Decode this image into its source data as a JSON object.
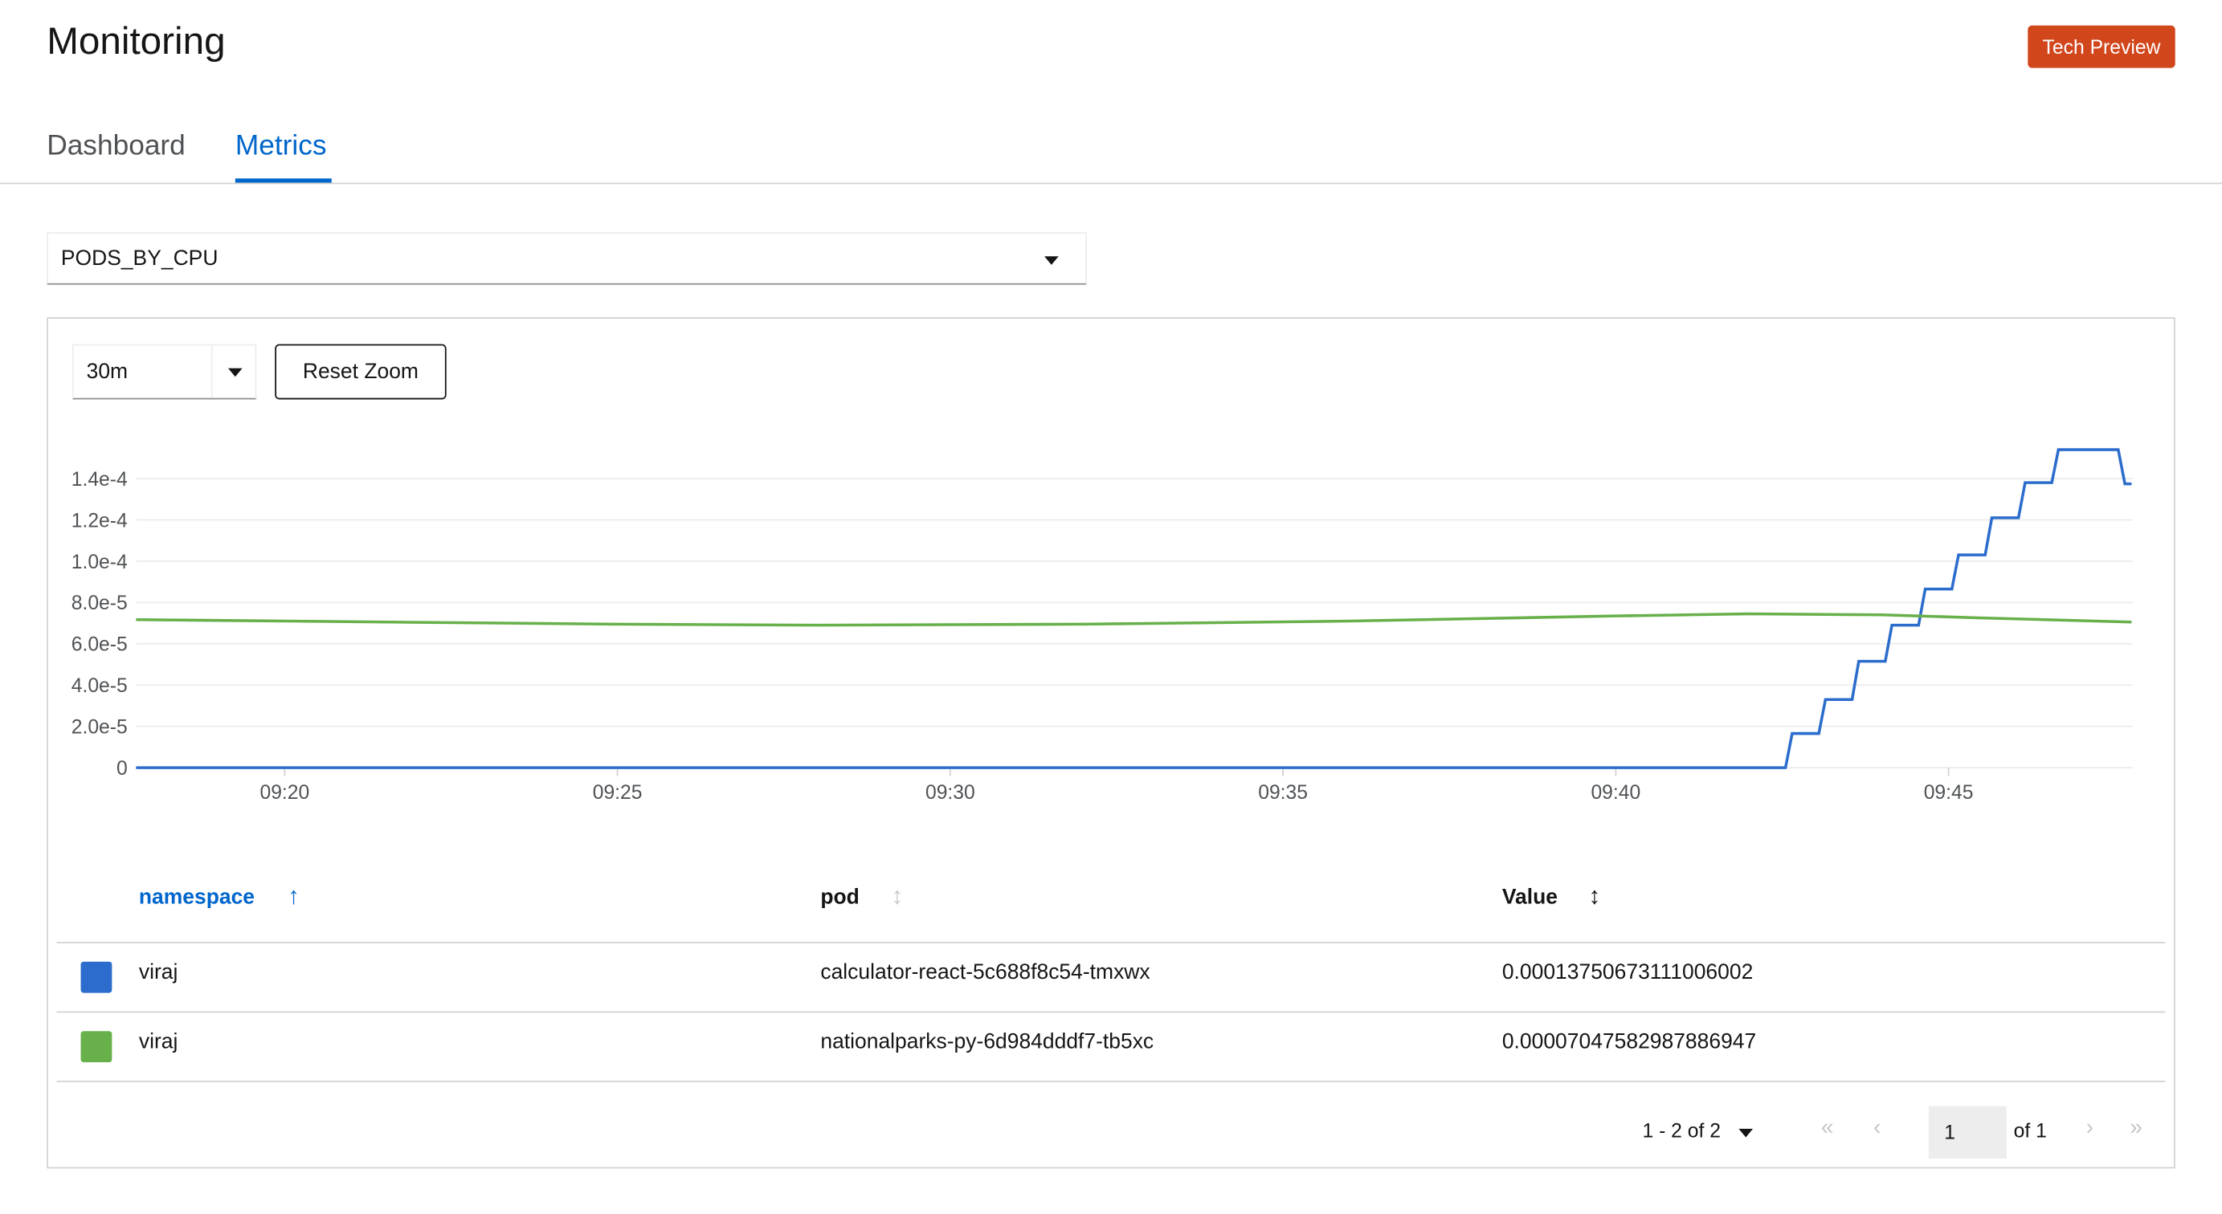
{
  "header": {
    "title": "Monitoring",
    "badge": "Tech Preview"
  },
  "tabs": [
    {
      "label": "Dashboard",
      "active": false
    },
    {
      "label": "Metrics",
      "active": true
    }
  ],
  "query_select": {
    "value": "PODS_BY_CPU"
  },
  "toolbar": {
    "time_range": "30m",
    "reset_zoom_label": "Reset Zoom"
  },
  "colors": {
    "accent": "#0066cc",
    "badge": "#d2461c",
    "series1": "#2b6ccc",
    "series2": "#67b04a"
  },
  "chart_data": {
    "type": "line",
    "xlim": [
      "09:17:46",
      "09:47:46"
    ],
    "ylim": [
      0,
      0.000154
    ],
    "x_ticks": [
      "09:20",
      "09:25",
      "09:30",
      "09:35",
      "09:40",
      "09:45"
    ],
    "y_ticks": [
      {
        "value": 0,
        "label": "0"
      },
      {
        "value": 2e-05,
        "label": "2.0e-5"
      },
      {
        "value": 4e-05,
        "label": "4.0e-5"
      },
      {
        "value": 6e-05,
        "label": "6.0e-5"
      },
      {
        "value": 8e-05,
        "label": "8.0e-5"
      },
      {
        "value": 0.0001,
        "label": "1.0e-4"
      },
      {
        "value": 0.00012,
        "label": "1.2e-4"
      },
      {
        "value": 0.00014,
        "label": "1.4e-4"
      }
    ],
    "grid": true,
    "series": [
      {
        "color": "#2b6ccc",
        "points": [
          [
            "09:17:46",
            0
          ],
          [
            "09:42:33",
            0
          ],
          [
            "09:42:39",
            1.65e-05
          ],
          [
            "09:43:03",
            1.65e-05
          ],
          [
            "09:43:09",
            3.3e-05
          ],
          [
            "09:43:33",
            3.3e-05
          ],
          [
            "09:43:39",
            5.15e-05
          ],
          [
            "09:44:03",
            5.15e-05
          ],
          [
            "09:44:09",
            6.9e-05
          ],
          [
            "09:44:33",
            6.9e-05
          ],
          [
            "09:44:39",
            8.65e-05
          ],
          [
            "09:45:03",
            8.65e-05
          ],
          [
            "09:45:09",
            0.000103
          ],
          [
            "09:45:33",
            0.000103
          ],
          [
            "09:45:39",
            0.000121
          ],
          [
            "09:46:03",
            0.000121
          ],
          [
            "09:46:09",
            0.000138
          ],
          [
            "09:46:33",
            0.000138
          ],
          [
            "09:46:39",
            0.000154
          ],
          [
            "09:47:33",
            0.000154
          ],
          [
            "09:47:39",
            0.0001375
          ],
          [
            "09:47:45",
            0.0001375
          ]
        ]
      },
      {
        "color": "#67b04a",
        "points": [
          [
            "09:17:46",
            7.17e-05
          ],
          [
            "09:20:00",
            7.1e-05
          ],
          [
            "09:25:00",
            6.95e-05
          ],
          [
            "09:28:00",
            6.9e-05
          ],
          [
            "09:32:00",
            6.95e-05
          ],
          [
            "09:36:00",
            7.1e-05
          ],
          [
            "09:40:00",
            7.35e-05
          ],
          [
            "09:42:00",
            7.45e-05
          ],
          [
            "09:44:00",
            7.4e-05
          ],
          [
            "09:45:30",
            7.25e-05
          ],
          [
            "09:47:45",
            7.05e-05
          ]
        ]
      }
    ]
  },
  "table": {
    "columns": [
      {
        "label": "namespace",
        "sorted": "asc"
      },
      {
        "label": "pod",
        "sorted": "none"
      },
      {
        "label": "Value",
        "sorted": "none"
      }
    ],
    "rows": [
      {
        "color": "#2b6ccc",
        "namespace": "viraj",
        "pod": "calculator-react-5c688f8c54-tmxwx",
        "value": "0.00013750673111006002"
      },
      {
        "color": "#67b04a",
        "namespace": "viraj",
        "pod": "nationalparks-py-6d984dddf7-tb5xc",
        "value": "0.00007047582987886947"
      }
    ]
  },
  "pagination": {
    "range": "1 - 2 of 2",
    "page": "1",
    "of": "of 1"
  }
}
